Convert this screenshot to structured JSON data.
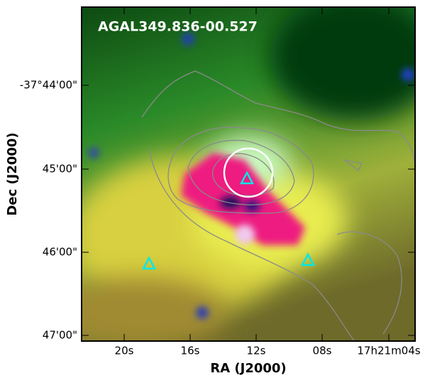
{
  "title": "AGAL349.836-00.527",
  "x_axis": {
    "label": "RA (J2000)",
    "ticks": [
      "20s",
      "16s",
      "12s",
      "08s",
      "17h21m04s"
    ]
  },
  "y_axis": {
    "label": "Dec (J2000)",
    "ticks": [
      "-37°44'00\"",
      "45'00\"",
      "46'00\"",
      "47'00\""
    ]
  }
}
